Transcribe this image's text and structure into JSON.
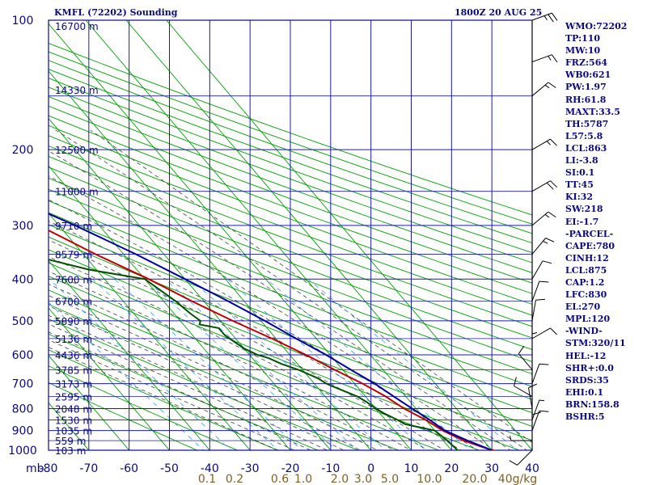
{
  "title_left": "KMFL (72202) Sounding",
  "title_right": "1800Z 20 AUG 25",
  "colors": {
    "frame": "#0a0a90",
    "grid": "#1a1ab0",
    "dry_adiabat": "#00a000",
    "moist_adiabat": "#404040",
    "mixing_ratio": "#3399ff",
    "temperature": "#c00000",
    "dewpoint": "#005000",
    "parcel": "#0000a0",
    "wind": "#000000",
    "mixing_label": "#806020",
    "text": "#0a0a80"
  },
  "chart_data": {
    "type": "skew-t",
    "title": "KMFL (72202) Sounding",
    "valid_time": "1800Z 20 AUG 25",
    "pressure_levels": [
      100,
      200,
      300,
      400,
      500,
      600,
      700,
      800,
      900,
      1000
    ],
    "pressure_range": [
      100,
      1000
    ],
    "pressure_unit": "mb",
    "temperature_ticks": [
      -80,
      -70,
      -60,
      -50,
      -40,
      -30,
      -20,
      -10,
      0,
      10,
      20,
      30,
      40
    ],
    "temperature_range": [
      -80,
      40
    ],
    "mixing_ratio_ticks": [
      "0.1",
      "0.2",
      "0.6",
      "1.0",
      "2.0",
      "3.0",
      "5.0",
      "10.0",
      "20.0",
      "40g/kg"
    ],
    "height_labels": [
      {
        "p": 103,
        "label": "16700 m"
      },
      {
        "p": 145,
        "label": "14330 m"
      },
      {
        "p": 200,
        "label": "12500 m"
      },
      {
        "p": 250,
        "label": "11000 m"
      },
      {
        "p": 300,
        "label": "9710 m"
      },
      {
        "p": 350,
        "label": "8579 m"
      },
      {
        "p": 400,
        "label": "7600 m"
      },
      {
        "p": 450,
        "label": "6700 m"
      },
      {
        "p": 500,
        "label": "5890 m"
      },
      {
        "p": 550,
        "label": "5136 m"
      },
      {
        "p": 600,
        "label": "4436 m"
      },
      {
        "p": 650,
        "label": "3785 m"
      },
      {
        "p": 700,
        "label": "3173 m"
      },
      {
        "p": 750,
        "label": "2595 m"
      },
      {
        "p": 800,
        "label": "2048 m"
      },
      {
        "p": 850,
        "label": "1530 m"
      },
      {
        "p": 900,
        "label": "1035 m"
      },
      {
        "p": 950,
        "label": "559 m"
      },
      {
        "p": 1000,
        "label": "103 m"
      }
    ],
    "series": [
      {
        "name": "temperature",
        "points": [
          [
            1010,
            32
          ],
          [
            1000,
            30
          ],
          [
            950,
            25
          ],
          [
            900,
            22
          ],
          [
            850,
            20
          ],
          [
            800,
            17
          ],
          [
            750,
            15
          ],
          [
            700,
            12
          ],
          [
            650,
            8
          ],
          [
            600,
            4
          ],
          [
            550,
            -1
          ],
          [
            500,
            -7
          ],
          [
            450,
            -13
          ],
          [
            400,
            -19
          ],
          [
            350,
            -27
          ],
          [
            300,
            -35
          ],
          [
            250,
            -46
          ],
          [
            200,
            -56
          ],
          [
            150,
            -66
          ],
          [
            125,
            -73
          ],
          [
            110,
            -78
          ],
          [
            100,
            -81
          ]
        ]
      },
      {
        "name": "dewpoint",
        "points": [
          [
            1010,
            22
          ],
          [
            1000,
            21.5
          ],
          [
            950,
            21
          ],
          [
            900,
            20
          ],
          [
            870,
            14
          ],
          [
            850,
            13
          ],
          [
            820,
            11
          ],
          [
            800,
            10
          ],
          [
            770,
            9
          ],
          [
            750,
            8
          ],
          [
            730,
            6
          ],
          [
            710,
            4
          ],
          [
            700,
            3
          ],
          [
            680,
            2
          ],
          [
            650,
            -1
          ],
          [
            630,
            -4
          ],
          [
            610,
            -6
          ],
          [
            600,
            -8
          ],
          [
            580,
            -10
          ],
          [
            560,
            -11
          ],
          [
            540,
            -12
          ],
          [
            520,
            -12
          ],
          [
            510,
            -16
          ],
          [
            500,
            -15
          ],
          [
            480,
            -16
          ],
          [
            450,
            -17
          ],
          [
            400,
            -20
          ],
          [
            380,
            -32
          ],
          [
            350,
            -44
          ],
          [
            300,
            -65
          ],
          [
            250,
            -75
          ],
          [
            200,
            -78
          ],
          [
            150,
            -81
          ],
          [
            130,
            -82
          ],
          [
            110,
            -84
          ],
          [
            100,
            -86
          ]
        ]
      },
      {
        "name": "parcel",
        "points": [
          [
            1000,
            30
          ],
          [
            950,
            26
          ],
          [
            900,
            22.5
          ],
          [
            850,
            21
          ],
          [
            800,
            19
          ],
          [
            750,
            17
          ],
          [
            700,
            15
          ],
          [
            650,
            12
          ],
          [
            600,
            9
          ],
          [
            550,
            5
          ],
          [
            500,
            1
          ],
          [
            450,
            -4
          ],
          [
            400,
            -10
          ],
          [
            350,
            -17
          ],
          [
            300,
            -26
          ],
          [
            250,
            -38
          ],
          [
            200,
            -51
          ],
          [
            150,
            -67
          ],
          [
            125,
            -76
          ],
          [
            100,
            -86
          ]
        ]
      }
    ],
    "wind_barbs": [
      {
        "p": 1000,
        "dir": 45,
        "speed": 10
      },
      {
        "p": 950,
        "dir": 90,
        "speed": 5
      },
      {
        "p": 925,
        "dir": 180,
        "speed": 10
      },
      {
        "p": 900,
        "dir": 200,
        "speed": 10
      },
      {
        "p": 850,
        "dir": 200,
        "speed": 5
      },
      {
        "p": 800,
        "dir": 170,
        "speed": 10
      },
      {
        "p": 750,
        "dir": 120,
        "speed": 10
      },
      {
        "p": 700,
        "dir": 200,
        "speed": 10
      },
      {
        "p": 650,
        "dir": 140,
        "speed": 10
      },
      {
        "p": 600,
        "dir": 180,
        "speed": 5
      },
      {
        "p": 550,
        "dir": 240,
        "speed": 10
      },
      {
        "p": 500,
        "dir": 190,
        "speed": 10
      },
      {
        "p": 450,
        "dir": 200,
        "speed": 10
      },
      {
        "p": 400,
        "dir": 210,
        "speed": 10
      },
      {
        "p": 350,
        "dir": 220,
        "speed": 15
      },
      {
        "p": 300,
        "dir": 230,
        "speed": 15
      },
      {
        "p": 250,
        "dir": 240,
        "speed": 20
      },
      {
        "p": 200,
        "dir": 240,
        "speed": 15
      },
      {
        "p": 150,
        "dir": 230,
        "speed": 15
      },
      {
        "p": 125,
        "dir": 250,
        "speed": 15
      },
      {
        "p": 100,
        "dir": 250,
        "speed": 25
      }
    ],
    "indices": [
      "WMO:72202",
      "TP:110",
      "MW:10",
      "FRZ:564",
      "WB0:621",
      "PW:1.97",
      "RH:61.8",
      "MAXT:33.5",
      "TH:5787",
      "L57:5.8",
      "LCL:863",
      "LI:-3.8",
      "SI:0.1",
      "TT:45",
      "KI:32",
      "SW:218",
      "EI:-1.7",
      "-PARCEL-",
      "CAPE:780",
      "CINH:12",
      "LCL:875",
      "CAP:1.2",
      "LFC:830",
      "EL:270",
      "MPL:120",
      "-WIND-",
      "STM:320/11",
      "HEL:-12",
      "SHR+:0.0",
      "SRDS:35",
      "EHI:0.1",
      "BRN:158.8",
      "BSHR:5"
    ]
  }
}
